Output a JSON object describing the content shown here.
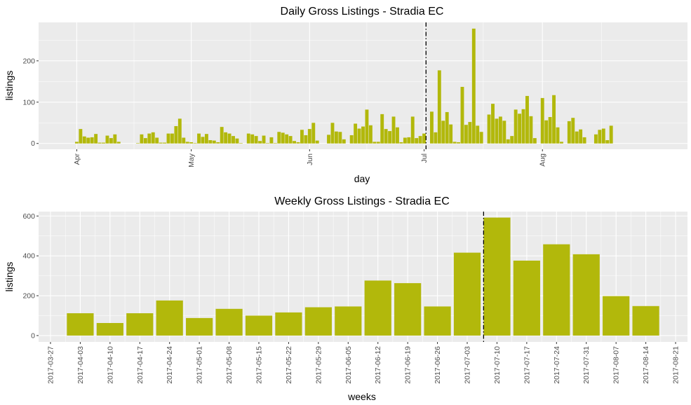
{
  "chart_data": [
    {
      "type": "bar",
      "title": "Daily Gross Listings - Stradia EC",
      "xlabel": "day",
      "ylabel": "listings",
      "x_ticks": [
        "Apr",
        "May",
        "Jun",
        "Jul",
        "Aug"
      ],
      "y_ticks": [
        0,
        100,
        200
      ],
      "ylim": [
        -14,
        293
      ],
      "x_range_days": [
        -10,
        160
      ],
      "start_date": "2017-04-01",
      "reference_line_day": 91.5,
      "grid": true,
      "values": [
        4,
        35,
        17,
        14,
        15,
        23,
        2,
        2,
        19,
        13,
        22,
        4,
        0,
        0,
        0,
        0,
        1,
        22,
        13,
        24,
        27,
        14,
        2,
        2,
        24,
        24,
        42,
        60,
        14,
        4,
        3,
        1,
        24,
        16,
        23,
        8,
        7,
        3,
        40,
        27,
        24,
        18,
        12,
        1,
        0,
        24,
        22,
        18,
        6,
        19,
        1,
        15,
        1,
        28,
        26,
        22,
        18,
        6,
        3,
        33,
        20,
        35,
        50,
        7,
        0,
        0,
        21,
        50,
        29,
        28,
        10,
        0,
        20,
        48,
        36,
        41,
        82,
        44,
        4,
        4,
        71,
        35,
        30,
        65,
        39,
        3,
        14,
        15,
        65,
        13,
        18,
        24,
        0,
        77,
        27,
        177,
        55,
        76,
        46,
        4,
        3,
        137,
        45,
        52,
        278,
        43,
        28,
        0,
        70,
        96,
        60,
        65,
        55,
        10,
        18,
        82,
        72,
        83,
        115,
        66,
        13,
        0,
        110,
        56,
        64,
        117,
        39,
        4,
        0,
        54,
        62,
        29,
        34,
        15,
        0,
        0,
        22,
        33,
        36,
        8,
        43
      ]
    },
    {
      "type": "bar",
      "title": "Weekly Gross Listings - Stradia EC",
      "xlabel": "weeks",
      "ylabel": "listings",
      "categories": [
        "2017-03-27",
        "2017-04-03",
        "2017-04-10",
        "2017-04-17",
        "2017-04-24",
        "2017-05-01",
        "2017-05-08",
        "2017-05-15",
        "2017-05-22",
        "2017-05-29",
        "2017-06-05",
        "2017-06-12",
        "2017-06-19",
        "2017-06-26",
        "2017-07-03",
        "2017-07-10",
        "2017-07-17",
        "2017-07-24",
        "2017-07-31",
        "2017-08-07",
        "2017-08-14",
        "2017-08-21"
      ],
      "values": [
        0,
        112,
        63,
        112,
        176,
        88,
        134,
        100,
        116,
        142,
        146,
        276,
        263,
        146,
        416,
        592,
        376,
        458,
        408,
        198,
        148,
        0
      ],
      "y_ticks": [
        0,
        200,
        400,
        600
      ],
      "ylim": [
        -32,
        622
      ],
      "reference_line_index": 14.55,
      "grid": true
    }
  ]
}
